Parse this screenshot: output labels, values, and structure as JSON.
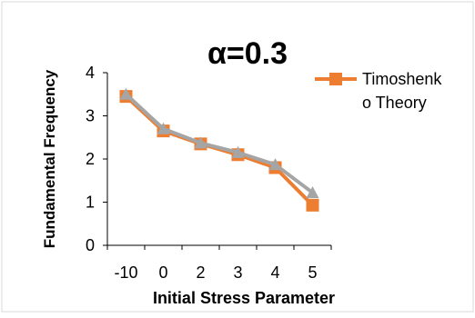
{
  "chart_data": {
    "type": "line",
    "title": "α=0.3",
    "xlabel": "Initial Stress Parameter",
    "ylabel": "Fundamental Frequency",
    "categories": [
      "-10",
      "0",
      "2",
      "3",
      "4",
      "5"
    ],
    "ylim": [
      0,
      4
    ],
    "yticks": [
      "0",
      "1",
      "2",
      "3",
      "4"
    ],
    "grid": false,
    "legend": "right",
    "series": [
      {
        "name": "Timoshenko Theory",
        "legend_lines": [
          "Timoshenk",
          "o Theory"
        ],
        "color": "#ED7D31",
        "marker": "square",
        "values": [
          3.45,
          2.65,
          2.35,
          2.1,
          1.8,
          0.93
        ]
      },
      {
        "color": "#A5A5A5",
        "marker": "triangle",
        "values": [
          3.5,
          2.7,
          2.37,
          2.15,
          1.87,
          1.22
        ]
      }
    ]
  }
}
